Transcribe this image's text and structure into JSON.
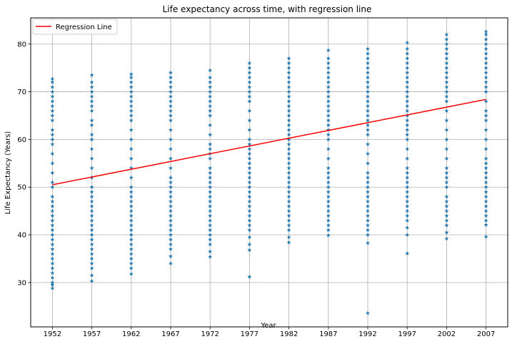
{
  "chart_data": {
    "type": "scatter",
    "title": "Life expectancy across time, with regression line",
    "xlabel": "Year",
    "ylabel": "Life Expectancy (Years)",
    "x_ticks": [
      "1952",
      "1957",
      "1962",
      "1967",
      "1972",
      "1977",
      "1982",
      "1987",
      "1992",
      "1997",
      "2002",
      "2007"
    ],
    "y_ticks": [
      "30",
      "40",
      "50",
      "60",
      "70",
      "80"
    ],
    "xlim": [
      1949.25,
      2009.75
    ],
    "ylim": [
      20.7,
      85.5
    ],
    "grid": true,
    "legend_position": "top-left",
    "marker": "star",
    "colors": {
      "points": "#1f77b4",
      "regression": "#ff0000",
      "grid": "#b0b0b0"
    },
    "series": [
      {
        "kind": "points",
        "groups": [
          {
            "x": 1952,
            "y": [
              28.8,
              29.5,
              30.0,
              31.0,
              32.0,
              33.0,
              34.0,
              35.0,
              36.0,
              37.0,
              38.0,
              39.0,
              40.0,
              41.0,
              42.0,
              43.0,
              44.0,
              45.0,
              46.0,
              47.0,
              48.0,
              50.0,
              51.0,
              53.0,
              55.0,
              57.0,
              59.0,
              60.0,
              61.0,
              62.0,
              64.0,
              65.0,
              66.0,
              67.0,
              68.0,
              69.0,
              70.0,
              71.0,
              72.0,
              72.7
            ]
          },
          {
            "x": 1957,
            "y": [
              30.3,
              31.5,
              33.0,
              34.0,
              35.0,
              36.0,
              37.0,
              38.0,
              39.0,
              40.0,
              41.0,
              42.0,
              43.0,
              44.0,
              45.0,
              46.0,
              47.0,
              48.0,
              49.0,
              50.0,
              52.0,
              54.0,
              56.0,
              58.0,
              60.0,
              61.0,
              63.0,
              64.0,
              66.0,
              67.0,
              68.0,
              69.0,
              70.0,
              71.0,
              72.0,
              73.5
            ]
          },
          {
            "x": 1962,
            "y": [
              31.8,
              33.0,
              34.0,
              35.0,
              36.0,
              37.0,
              38.0,
              39.0,
              40.0,
              41.0,
              42.0,
              43.0,
              44.0,
              45.0,
              46.0,
              47.0,
              48.0,
              49.0,
              50.0,
              52.0,
              54.0,
              56.0,
              58.0,
              60.0,
              62.0,
              64.0,
              65.0,
              66.0,
              67.0,
              68.0,
              69.0,
              70.0,
              71.0,
              72.0,
              73.0,
              73.7
            ]
          },
          {
            "x": 1967,
            "y": [
              34.0,
              35.5,
              37.0,
              38.0,
              39.0,
              40.0,
              41.0,
              42.0,
              43.0,
              44.0,
              45.0,
              46.0,
              47.0,
              48.0,
              49.0,
              50.0,
              51.0,
              52.0,
              54.0,
              56.0,
              58.0,
              60.0,
              62.0,
              64.0,
              65.0,
              66.0,
              67.0,
              68.0,
              69.0,
              70.0,
              71.0,
              72.0,
              73.0,
              74.0
            ]
          },
          {
            "x": 1972,
            "y": [
              35.4,
              36.5,
              38.0,
              39.0,
              40.0,
              41.0,
              42.0,
              43.0,
              44.0,
              45.0,
              46.0,
              47.0,
              48.0,
              49.0,
              50.0,
              51.0,
              52.0,
              53.0,
              54.0,
              56.0,
              57.0,
              58.0,
              59.0,
              61.0,
              63.0,
              65.0,
              66.0,
              67.0,
              68.0,
              69.0,
              70.0,
              71.0,
              72.0,
              73.0,
              74.5
            ]
          },
          {
            "x": 1977,
            "y": [
              31.2,
              36.8,
              38.0,
              39.5,
              41.0,
              42.0,
              43.0,
              44.0,
              45.0,
              46.0,
              47.0,
              48.0,
              49.0,
              50.0,
              51.0,
              52.0,
              53.0,
              54.0,
              55.0,
              56.0,
              57.0,
              58.0,
              59.0,
              60.0,
              62.0,
              64.0,
              66.0,
              68.0,
              69.0,
              70.0,
              71.0,
              72.0,
              73.0,
              74.0,
              75.0,
              76.0
            ]
          },
          {
            "x": 1982,
            "y": [
              38.4,
              39.5,
              41.0,
              42.0,
              43.0,
              44.0,
              45.0,
              46.0,
              47.0,
              48.0,
              49.0,
              50.0,
              51.0,
              52.0,
              53.0,
              54.0,
              55.0,
              56.0,
              57.0,
              58.0,
              59.0,
              60.0,
              61.0,
              62.0,
              63.0,
              64.0,
              65.0,
              66.0,
              67.0,
              68.0,
              69.0,
              70.0,
              71.0,
              72.0,
              73.0,
              74.0,
              75.0,
              76.0,
              77.0
            ]
          },
          {
            "x": 1987,
            "y": [
              39.9,
              41.0,
              42.0,
              43.0,
              44.0,
              45.0,
              46.0,
              47.0,
              48.0,
              49.0,
              50.0,
              51.0,
              52.0,
              53.0,
              54.0,
              56.0,
              58.0,
              60.0,
              61.0,
              62.0,
              63.0,
              64.0,
              65.0,
              66.0,
              67.0,
              68.0,
              69.0,
              70.0,
              71.0,
              72.0,
              73.0,
              74.0,
              75.0,
              76.0,
              77.0,
              78.7
            ]
          },
          {
            "x": 1992,
            "y": [
              23.6,
              38.3,
              40.0,
              41.0,
              42.0,
              43.0,
              44.0,
              45.0,
              46.0,
              47.0,
              48.0,
              49.0,
              50.0,
              51.0,
              52.0,
              53.0,
              55.0,
              57.0,
              59.0,
              61.0,
              62.0,
              63.0,
              64.0,
              65.0,
              66.0,
              67.0,
              68.0,
              69.0,
              70.0,
              71.0,
              72.0,
              73.0,
              74.0,
              75.0,
              76.0,
              77.0,
              78.0,
              79.0
            ]
          },
          {
            "x": 1997,
            "y": [
              36.1,
              40.0,
              41.5,
              43.0,
              44.0,
              45.0,
              46.0,
              47.0,
              48.0,
              49.0,
              50.0,
              51.0,
              52.0,
              53.0,
              54.0,
              56.0,
              58.0,
              60.0,
              61.0,
              62.0,
              63.0,
              64.0,
              65.0,
              66.0,
              67.0,
              68.0,
              69.0,
              70.0,
              71.0,
              72.0,
              73.0,
              74.0,
              75.0,
              76.0,
              77.0,
              78.0,
              79.0,
              80.3
            ]
          },
          {
            "x": 2002,
            "y": [
              39.2,
              40.5,
              42.0,
              43.0,
              44.0,
              45.0,
              46.0,
              47.0,
              48.0,
              50.0,
              51.0,
              52.0,
              53.0,
              54.0,
              56.0,
              58.0,
              60.0,
              62.0,
              64.0,
              66.0,
              68.0,
              69.0,
              70.0,
              71.0,
              72.0,
              73.0,
              74.0,
              75.0,
              76.0,
              77.0,
              78.0,
              79.0,
              80.0,
              81.0,
              82.0
            ]
          },
          {
            "x": 2007,
            "y": [
              39.6,
              42.1,
              43.0,
              44.0,
              45.0,
              46.0,
              47.0,
              48.0,
              49.0,
              50.0,
              51.0,
              52.0,
              53.0,
              54.0,
              55.0,
              56.0,
              58.0,
              60.0,
              62.0,
              64.0,
              65.0,
              66.0,
              68.0,
              70.0,
              71.0,
              72.0,
              73.0,
              74.0,
              75.0,
              76.0,
              77.0,
              78.0,
              79.0,
              80.0,
              81.0,
              82.0,
              82.6
            ]
          }
        ]
      },
      {
        "kind": "line",
        "name": "Regression Line",
        "x": [
          1952,
          2007
        ],
        "y": [
          50.5,
          68.4
        ]
      }
    ]
  }
}
